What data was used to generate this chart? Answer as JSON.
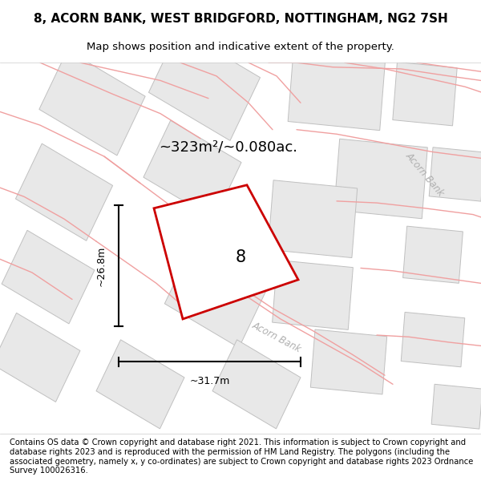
{
  "title": "8, ACORN BANK, WEST BRIDGFORD, NOTTINGHAM, NG2 7SH",
  "subtitle": "Map shows position and indicative extent of the property.",
  "area_label": "~323m²/~0.080ac.",
  "number_label": "8",
  "width_label": "~31.7m",
  "height_label": "~26.8m",
  "acorn_bank_label": "Acorn Bank",
  "footer": "Contains OS data © Crown copyright and database right 2021. This information is subject to Crown copyright and database rights 2023 and is reproduced with the permission of HM Land Registry. The polygons (including the associated geometry, namely x, y co-ordinates) are subject to Crown copyright and database rights 2023 Ordnance Survey 100026316.",
  "property_color": "#cc0000",
  "title_fontsize": 11,
  "subtitle_fontsize": 9.5,
  "footer_fontsize": 7.2,
  "map_bg": "#ffffff",
  "building_face": "#e8e8e8",
  "building_edge": "#c0c0c0",
  "road_color": "#f0a0a0",
  "road_lw": 1.0
}
